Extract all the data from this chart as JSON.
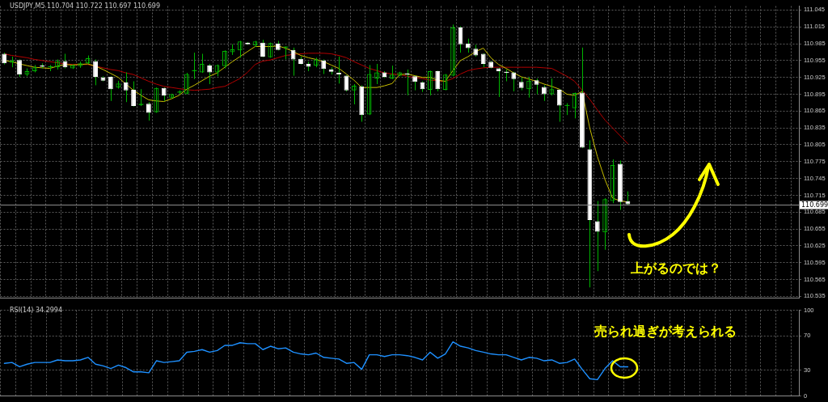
{
  "chart_data": [
    {
      "type": "candlestick",
      "title": "USDJPY,M5 110.704 110.722 110.697 110.699",
      "color": "#00b400",
      "colors": [
        "#ffffff",
        "#00b400",
        "#ffffff",
        "#00b400",
        "#00b400",
        "#ffffff",
        "#00b400",
        "#00b400",
        "#ffffff",
        "#00b400",
        "#00b400",
        "#00b400",
        "#ffffff",
        "#ffffff",
        "#ffffff",
        "#00b400",
        "#ffffff",
        "#ffffff",
        "#00b400",
        "#ffffff",
        "#00b400",
        "#ffffff",
        "#00b400",
        "#00b400",
        "#00b400",
        "#00b400",
        "#00b400",
        "#ffffff",
        "#00b400",
        "#00b400",
        "#00b400",
        "#00b400",
        "#ffffff",
        "#00b400",
        "#ffffff",
        "#00b400",
        "#ffffff",
        "#00b400",
        "#ffffff",
        "#ffffff",
        "#ffffff",
        "#00b400",
        "#ffffff",
        "#ffffff",
        "#ffffff",
        "#ffffff",
        "#00b400",
        "#ffffff",
        "#00b400",
        "#00b400",
        "#ffffff",
        "#00b400",
        "#00b400",
        "#ffffff",
        "#ffffff",
        "#ffffff",
        "#00b400",
        "#ffffff",
        "#00b400",
        "#00b400",
        "#ffffff",
        "#ffffff",
        "#ffffff",
        "#ffffff",
        "#ffffff",
        "#ffffff",
        "#ffffff",
        "#ffffff",
        "#ffffff",
        "#00b400",
        "#ffffff",
        "#ffffff",
        "#00b400",
        "#ffffff",
        "#00b400",
        "#00b400",
        "#ffffff",
        "#ffffff",
        "#ffffff",
        "#00b400",
        "#00b400",
        "#ffffff",
        "#ffffff",
        null,
        null,
        null,
        null,
        null,
        null,
        null,
        null,
        null,
        null,
        null,
        null,
        null,
        null,
        null,
        null,
        null,
        null,
        null,
        null,
        null,
        null
      ],
      "categories": [
        null,
        null,
        null,
        null,
        null,
        null,
        null,
        null,
        null,
        null,
        null,
        null,
        null,
        null,
        null,
        null,
        null,
        null,
        null,
        null,
        null,
        null,
        null,
        null,
        null,
        null,
        null,
        null,
        null,
        null,
        null,
        null,
        null,
        null,
        null,
        null,
        null,
        null,
        null,
        null,
        null,
        null,
        null,
        null,
        null,
        null,
        null,
        null,
        null,
        null,
        null,
        null,
        null,
        null,
        null,
        null,
        null,
        null,
        null,
        null,
        null,
        null,
        null,
        null,
        null,
        null,
        null,
        null,
        null,
        null,
        null,
        null,
        null,
        null,
        null,
        null,
        null,
        null,
        null,
        null,
        null,
        null,
        null,
        null,
        null,
        null,
        null,
        null,
        null,
        null,
        null,
        null,
        null,
        null,
        null,
        null,
        null,
        null,
        null,
        null,
        null,
        null,
        null,
        null,
        null
      ],
      "ohlc": [
        [
          110.967,
          110.969,
          110.948,
          110.95
        ],
        [
          110.951,
          110.962,
          110.943,
          110.955
        ],
        [
          110.956,
          110.957,
          110.926,
          110.93
        ],
        [
          110.93,
          110.941,
          110.927,
          110.936
        ],
        [
          110.936,
          110.947,
          110.934,
          110.943
        ],
        [
          110.946,
          110.95,
          110.941,
          110.944
        ],
        [
          110.943,
          110.947,
          110.936,
          110.944
        ],
        [
          110.943,
          110.957,
          110.939,
          110.954
        ],
        [
          110.954,
          110.967,
          110.941,
          110.943
        ],
        [
          110.941,
          110.948,
          110.94,
          110.947
        ],
        [
          110.945,
          110.953,
          110.942,
          110.95
        ],
        [
          110.95,
          110.964,
          110.949,
          110.959
        ],
        [
          110.954,
          110.957,
          110.911,
          110.926
        ],
        [
          110.925,
          110.927,
          110.918,
          110.919
        ],
        [
          110.926,
          110.927,
          110.883,
          110.904
        ],
        [
          110.907,
          110.919,
          110.905,
          110.914
        ],
        [
          110.916,
          110.934,
          110.881,
          110.902
        ],
        [
          110.903,
          110.918,
          110.873,
          110.874
        ],
        [
          110.876,
          110.904,
          110.874,
          110.877
        ],
        [
          110.878,
          110.881,
          110.848,
          110.862
        ],
        [
          110.863,
          110.907,
          110.862,
          110.906
        ],
        [
          110.906,
          110.907,
          110.883,
          110.893
        ],
        [
          110.889,
          110.896,
          110.887,
          110.895
        ],
        [
          110.898,
          110.902,
          110.895,
          110.899
        ],
        [
          110.896,
          110.933,
          110.895,
          110.931
        ],
        [
          110.936,
          110.969,
          110.922,
          110.937
        ],
        [
          110.934,
          110.967,
          110.933,
          110.949
        ],
        [
          110.946,
          110.949,
          110.913,
          110.934
        ],
        [
          110.934,
          110.948,
          110.927,
          110.947
        ],
        [
          110.945,
          110.973,
          110.941,
          110.972
        ],
        [
          110.97,
          110.984,
          110.965,
          110.975
        ],
        [
          110.973,
          110.99,
          110.96,
          110.989
        ],
        [
          110.987,
          110.988,
          110.983,
          110.984
        ],
        [
          110.982,
          110.99,
          110.979,
          110.989
        ],
        [
          110.987,
          110.992,
          110.961,
          110.962
        ],
        [
          110.961,
          110.987,
          110.96,
          110.986
        ],
        [
          110.985,
          110.99,
          110.973,
          110.974
        ],
        [
          110.978,
          110.98,
          110.957,
          110.979
        ],
        [
          110.974,
          110.978,
          110.928,
          110.957
        ],
        [
          110.958,
          110.962,
          110.948,
          110.949
        ],
        [
          110.949,
          110.953,
          110.936,
          110.944
        ],
        [
          110.946,
          110.96,
          110.943,
          110.957
        ],
        [
          110.955,
          110.957,
          110.931,
          110.94
        ],
        [
          110.939,
          110.943,
          110.93,
          110.935
        ],
        [
          110.933,
          110.962,
          110.914,
          110.93
        ],
        [
          110.928,
          110.929,
          110.9,
          110.902
        ],
        [
          110.902,
          110.913,
          110.877,
          110.91
        ],
        [
          110.909,
          110.911,
          110.846,
          110.858
        ],
        [
          110.859,
          110.947,
          110.858,
          110.931
        ],
        [
          110.923,
          110.949,
          110.913,
          110.934
        ],
        [
          110.934,
          110.936,
          110.924,
          110.926
        ],
        [
          110.923,
          110.946,
          110.922,
          110.93
        ],
        [
          110.928,
          110.935,
          110.927,
          110.934
        ],
        [
          110.932,
          110.939,
          110.893,
          110.93
        ],
        [
          110.927,
          110.928,
          110.902,
          110.917
        ],
        [
          110.916,
          110.918,
          110.899,
          110.904
        ],
        [
          110.903,
          110.937,
          110.893,
          110.936
        ],
        [
          110.936,
          110.937,
          110.9,
          110.904
        ],
        [
          110.903,
          110.931,
          110.902,
          110.93
        ],
        [
          110.928,
          111.019,
          110.927,
          111.014
        ],
        [
          111.014,
          111.016,
          110.969,
          110.984
        ],
        [
          110.985,
          110.994,
          110.969,
          110.977
        ],
        [
          110.976,
          110.983,
          110.962,
          110.964
        ],
        [
          110.967,
          110.968,
          110.943,
          110.949
        ],
        [
          110.953,
          110.954,
          110.941,
          110.942
        ],
        [
          110.941,
          110.942,
          110.89,
          110.936
        ],
        [
          110.935,
          110.939,
          110.918,
          110.934
        ],
        [
          110.934,
          110.935,
          110.9,
          110.922
        ],
        [
          110.917,
          110.925,
          110.902,
          110.906
        ],
        [
          110.904,
          110.926,
          110.889,
          110.919
        ],
        [
          110.92,
          110.923,
          110.895,
          110.912
        ],
        [
          110.908,
          110.911,
          110.883,
          110.895
        ],
        [
          110.895,
          110.923,
          110.893,
          110.904
        ],
        [
          110.903,
          110.904,
          110.846,
          110.875
        ],
        [
          110.874,
          110.879,
          110.858,
          110.875
        ],
        [
          110.87,
          110.898,
          110.852,
          110.897
        ],
        [
          110.898,
          110.978,
          110.799,
          110.8
        ],
        [
          110.797,
          110.813,
          110.551,
          110.671
        ],
        [
          110.669,
          110.705,
          110.58,
          110.65
        ],
        [
          110.649,
          110.71,
          110.618,
          110.708
        ],
        [
          110.705,
          110.779,
          110.701,
          110.769
        ],
        [
          110.771,
          110.777,
          110.689,
          110.703
        ],
        [
          110.704,
          110.722,
          110.697,
          110.699
        ],
        null,
        null,
        null,
        null,
        null,
        null,
        null,
        null,
        null,
        null,
        null,
        null,
        null,
        null,
        null,
        null,
        null,
        null,
        null,
        null,
        null,
        null
      ],
      "series": [
        {
          "type": "line",
          "color": "#c8be00",
          "values": [
            110.955,
            110.953,
            110.949,
            110.946,
            110.943,
            110.942,
            110.941,
            110.945,
            110.948,
            110.947,
            110.948,
            110.949,
            110.945,
            110.939,
            110.932,
            110.925,
            110.913,
            110.902,
            110.893,
            110.885,
            110.883,
            110.882,
            110.887,
            110.893,
            110.904,
            110.911,
            110.919,
            110.927,
            110.933,
            110.943,
            110.953,
            110.962,
            110.971,
            110.98,
            110.98,
            110.98,
            110.981,
            110.977,
            110.971,
            110.964,
            110.96,
            110.957,
            110.953,
            110.947,
            110.941,
            110.931,
            110.92,
            110.907,
            110.907,
            110.907,
            110.91,
            110.914,
            110.93,
            110.931,
            110.928,
            110.925,
            110.925,
            110.92,
            110.918,
            110.937,
            110.955,
            110.962,
            110.971,
            110.977,
            110.96,
            110.948,
            110.941,
            110.933,
            110.926,
            110.922,
            110.918,
            110.913,
            110.909,
            110.904,
            110.895,
            110.893,
            110.9,
            110.835,
            110.784,
            110.743,
            110.71,
            110.705,
            110.703,
            null,
            null,
            null,
            null,
            null,
            null,
            null,
            null,
            null,
            null,
            null,
            null,
            null,
            null,
            null,
            null,
            null,
            null,
            null,
            null,
            null,
            null
          ]
        },
        {
          "type": "line",
          "color": "#b40000",
          "values": [
            110.967,
            110.964,
            110.962,
            110.96,
            110.957,
            110.955,
            110.953,
            110.951,
            110.949,
            110.948,
            110.948,
            110.948,
            110.945,
            110.942,
            110.939,
            110.937,
            110.933,
            110.93,
            110.924,
            110.918,
            110.913,
            110.909,
            110.907,
            110.905,
            110.903,
            110.902,
            110.903,
            110.904,
            110.907,
            110.909,
            110.916,
            110.923,
            110.934,
            110.948,
            110.954,
            110.956,
            110.96,
            110.964,
            110.966,
            110.967,
            110.968,
            110.968,
            110.968,
            110.967,
            110.964,
            110.96,
            110.953,
            110.947,
            110.941,
            110.937,
            110.933,
            110.931,
            110.93,
            110.927,
            110.925,
            110.923,
            110.92,
            110.919,
            110.918,
            110.923,
            110.931,
            110.937,
            110.94,
            110.942,
            110.943,
            110.943,
            110.943,
            110.943,
            110.943,
            110.943,
            110.943,
            110.942,
            110.941,
            110.934,
            110.927,
            110.918,
            110.902,
            110.886,
            110.867,
            110.849,
            110.835,
            110.821,
            110.807,
            null,
            null,
            null,
            null,
            null,
            null,
            null,
            null,
            null,
            null,
            null,
            null,
            null,
            null,
            null,
            null,
            null,
            null,
            null,
            null,
            null,
            null
          ]
        }
      ],
      "ylim": [
        110.532,
        111.052
      ],
      "yticks": [
        110.535,
        110.565,
        110.595,
        110.625,
        110.655,
        110.685,
        110.715,
        110.745,
        110.775,
        110.805,
        110.835,
        110.865,
        110.895,
        110.925,
        110.955,
        110.985,
        111.015,
        111.045
      ],
      "ref_lines": [
        {
          "axis": "y",
          "value": 110.699,
          "label": "110.699",
          "color": "#8c8c8c"
        }
      ],
      "grid": true,
      "legend": false,
      "tick_labels": "y",
      "marker": "none",
      "line_style": "solid",
      "annotations": [
        "上がるのでは？"
      ]
    },
    {
      "type": "line",
      "title": "RSI(14) 34.2994",
      "categories": [
        null,
        null,
        null,
        null,
        null,
        null,
        null,
        null,
        null,
        null,
        null,
        null,
        null,
        null,
        null,
        null,
        null,
        null,
        null,
        null,
        null,
        null,
        null,
        null,
        null,
        null,
        null,
        null,
        null,
        null,
        null,
        null,
        null,
        null,
        null,
        null,
        null,
        null,
        null,
        null,
        null,
        null,
        null,
        null,
        null,
        null,
        null,
        null,
        null,
        null,
        null,
        null,
        null,
        null,
        null,
        null,
        null,
        null,
        null,
        null,
        null,
        null,
        null,
        null,
        null,
        null,
        null,
        null,
        null,
        null,
        null,
        null,
        null,
        null,
        null,
        null,
        null,
        null,
        null,
        null,
        null,
        null,
        null,
        null,
        null,
        null,
        null,
        null,
        null,
        null,
        null,
        null,
        null,
        null,
        null,
        null,
        null,
        null,
        null,
        null,
        null,
        null,
        null,
        null,
        null
      ],
      "series": [
        {
          "color": "#1e90ff",
          "values": [
            38,
            39,
            34,
            37,
            39,
            39,
            39,
            42,
            41,
            41,
            42,
            45,
            37,
            35,
            32,
            36,
            33,
            28,
            28,
            27,
            41,
            39,
            40,
            41,
            51,
            52,
            54,
            51,
            53,
            59,
            59,
            62,
            61,
            61,
            54,
            58,
            55,
            56,
            51,
            49,
            48,
            50,
            45,
            44,
            43,
            38,
            39,
            31,
            48,
            48,
            46,
            48,
            48,
            47,
            45,
            42,
            51,
            44,
            49,
            63,
            58,
            56,
            53,
            51,
            49,
            48,
            48,
            45,
            42,
            45,
            44,
            41,
            42,
            38,
            39,
            43,
            31,
            20,
            19,
            32,
            41,
            34,
            34,
            null,
            null,
            null,
            null,
            null,
            null,
            null,
            null,
            null,
            null,
            null,
            null,
            null,
            null,
            null,
            null,
            null,
            null,
            null,
            null,
            null,
            null
          ]
        }
      ],
      "ylim": [
        0,
        100
      ],
      "yticks": [
        0,
        30,
        70,
        100
      ],
      "grid": true,
      "legend": false,
      "tick_labels": "y",
      "marker": "none",
      "line_style": "solid",
      "annotations": [
        "売られ過ぎが考えられる"
      ]
    }
  ]
}
